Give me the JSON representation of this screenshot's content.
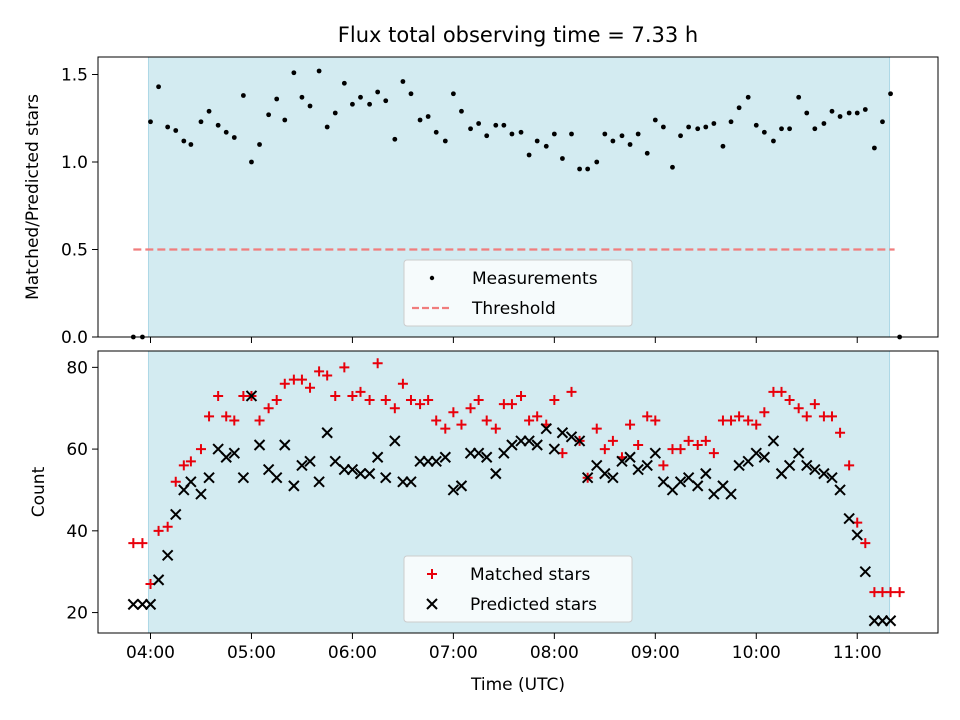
{
  "title": "Flux total observing time = 7.33 h",
  "colors": {
    "observing_span": "#d3ebf1",
    "threshold": "#f07d7d",
    "measurements": "#000000",
    "matched": "#e8000b",
    "predicted": "#000000"
  },
  "chart_data": [
    {
      "type": "scatter",
      "ylabel": "Matched/Predicted stars",
      "ylim": [
        0,
        1.6
      ],
      "yticks": [
        0.0,
        0.5,
        1.0,
        1.5
      ],
      "ytick_labels": [
        "0.0",
        "0.5",
        "1.0",
        "1.5"
      ],
      "xlim_hours": [
        3.48,
        11.8
      ],
      "observing_span_hours": [
        3.98,
        11.32
      ],
      "legend": {
        "placement": "lower-center",
        "entries": [
          "Measurements",
          "Threshold"
        ]
      },
      "threshold": {
        "name": "Threshold",
        "value": 0.5,
        "x_range_hours": [
          3.83,
          11.37
        ]
      },
      "series": [
        {
          "name": "Measurements",
          "x_hours": [
            3.83,
            3.92,
            4.0,
            4.08,
            4.17,
            4.25,
            4.33,
            4.4,
            4.5,
            4.58,
            4.67,
            4.75,
            4.83,
            4.92,
            5.0,
            5.08,
            5.17,
            5.25,
            5.33,
            5.42,
            5.5,
            5.58,
            5.67,
            5.75,
            5.83,
            5.92,
            6.0,
            6.08,
            6.17,
            6.25,
            6.33,
            6.42,
            6.5,
            6.58,
            6.67,
            6.75,
            6.83,
            6.92,
            7.0,
            7.08,
            7.17,
            7.25,
            7.33,
            7.42,
            7.5,
            7.58,
            7.67,
            7.75,
            7.83,
            7.92,
            8.0,
            8.08,
            8.17,
            8.25,
            8.33,
            8.42,
            8.5,
            8.58,
            8.67,
            8.75,
            8.83,
            8.92,
            9.0,
            9.08,
            9.17,
            9.25,
            9.33,
            9.42,
            9.5,
            9.58,
            9.67,
            9.75,
            9.83,
            9.92,
            10.0,
            10.08,
            10.17,
            10.25,
            10.33,
            10.42,
            10.5,
            10.58,
            10.67,
            10.75,
            10.83,
            10.92,
            11.0,
            11.08,
            11.17,
            11.25,
            11.33,
            11.42
          ],
          "values": [
            0.0,
            0.0,
            1.23,
            1.43,
            1.2,
            1.18,
            1.12,
            1.1,
            1.23,
            1.29,
            1.21,
            1.17,
            1.14,
            1.38,
            1.0,
            1.1,
            1.27,
            1.36,
            1.24,
            1.51,
            1.37,
            1.32,
            1.52,
            1.2,
            1.28,
            1.45,
            1.33,
            1.37,
            1.33,
            1.4,
            1.35,
            1.13,
            1.46,
            1.39,
            1.24,
            1.26,
            1.17,
            1.12,
            1.39,
            1.29,
            1.19,
            1.22,
            1.15,
            1.21,
            1.21,
            1.16,
            1.17,
            1.04,
            1.12,
            1.09,
            1.16,
            1.02,
            1.16,
            0.96,
            0.96,
            1.0,
            1.16,
            1.12,
            1.15,
            1.1,
            1.16,
            1.05,
            1.24,
            1.2,
            0.97,
            1.15,
            1.2,
            1.19,
            1.2,
            1.22,
            1.09,
            1.23,
            1.31,
            1.37,
            1.21,
            1.17,
            1.12,
            1.19,
            1.19,
            1.37,
            1.28,
            1.19,
            1.22,
            1.29,
            1.26,
            1.28,
            1.28,
            1.3,
            1.08,
            1.23,
            1.39,
            0.0
          ]
        }
      ]
    },
    {
      "type": "scatter",
      "xlabel": "Time (UTC)",
      "ylabel": "Count",
      "ylim": [
        15,
        84
      ],
      "yticks": [
        20,
        40,
        60,
        80
      ],
      "ytick_labels": [
        "20",
        "40",
        "60",
        "80"
      ],
      "xlim_hours": [
        3.48,
        11.8
      ],
      "xticks_hours": [
        4,
        5,
        6,
        7,
        8,
        9,
        10,
        11
      ],
      "xtick_labels": [
        "04:00",
        "05:00",
        "06:00",
        "07:00",
        "08:00",
        "09:00",
        "10:00",
        "11:00"
      ],
      "observing_span_hours": [
        3.98,
        11.32
      ],
      "legend": {
        "placement": "lower-center",
        "entries": [
          "Matched stars",
          "Predicted stars"
        ]
      },
      "series": [
        {
          "name": "Matched stars",
          "marker": "plus",
          "x_hours": [
            3.83,
            3.92,
            4.0,
            4.08,
            4.17,
            4.25,
            4.33,
            4.4,
            4.5,
            4.58,
            4.67,
            4.75,
            4.83,
            4.92,
            5.0,
            5.08,
            5.17,
            5.25,
            5.33,
            5.42,
            5.5,
            5.58,
            5.67,
            5.75,
            5.83,
            5.92,
            6.0,
            6.08,
            6.17,
            6.25,
            6.33,
            6.42,
            6.5,
            6.58,
            6.67,
            6.75,
            6.83,
            6.92,
            7.0,
            7.08,
            7.17,
            7.25,
            7.33,
            7.42,
            7.5,
            7.58,
            7.67,
            7.75,
            7.83,
            7.92,
            8.0,
            8.08,
            8.17,
            8.25,
            8.33,
            8.42,
            8.5,
            8.58,
            8.67,
            8.75,
            8.83,
            8.92,
            9.0,
            9.08,
            9.17,
            9.25,
            9.33,
            9.42,
            9.5,
            9.58,
            9.67,
            9.75,
            9.83,
            9.92,
            10.0,
            10.08,
            10.17,
            10.25,
            10.33,
            10.42,
            10.5,
            10.58,
            10.67,
            10.75,
            10.83,
            10.92,
            11.0,
            11.08,
            11.17,
            11.25,
            11.33,
            11.42
          ],
          "values": [
            37,
            37,
            27,
            40,
            41,
            52,
            56,
            57,
            60,
            68,
            73,
            68,
            67,
            73,
            73,
            67,
            70,
            72,
            76,
            77,
            77,
            75,
            79,
            78,
            73,
            80,
            73,
            74,
            72,
            81,
            72,
            70,
            76,
            72,
            71,
            72,
            67,
            65,
            69,
            66,
            70,
            72,
            67,
            65,
            71,
            71,
            73,
            67,
            68,
            66,
            72,
            59,
            74,
            62,
            53,
            65,
            60,
            62,
            58,
            66,
            61,
            68,
            67,
            56,
            60,
            60,
            62,
            61,
            62,
            59,
            67,
            67,
            68,
            67,
            66,
            69,
            74,
            74,
            72,
            70,
            68,
            71,
            68,
            68,
            64,
            56,
            42,
            37,
            25,
            25,
            25,
            25
          ]
        },
        {
          "name": "Predicted stars",
          "marker": "x",
          "x_hours": [
            3.83,
            3.92,
            4.0,
            4.08,
            4.17,
            4.25,
            4.33,
            4.4,
            4.5,
            4.58,
            4.67,
            4.75,
            4.83,
            4.92,
            5.0,
            5.08,
            5.17,
            5.25,
            5.33,
            5.42,
            5.5,
            5.58,
            5.67,
            5.75,
            5.83,
            5.92,
            6.0,
            6.08,
            6.17,
            6.25,
            6.33,
            6.42,
            6.5,
            6.58,
            6.67,
            6.75,
            6.83,
            6.92,
            7.0,
            7.08,
            7.17,
            7.25,
            7.33,
            7.42,
            7.5,
            7.58,
            7.67,
            7.75,
            7.83,
            7.92,
            8.0,
            8.08,
            8.17,
            8.25,
            8.33,
            8.42,
            8.5,
            8.58,
            8.67,
            8.75,
            8.83,
            8.92,
            9.0,
            9.08,
            9.17,
            9.25,
            9.33,
            9.42,
            9.5,
            9.58,
            9.67,
            9.75,
            9.83,
            9.92,
            10.0,
            10.08,
            10.17,
            10.25,
            10.33,
            10.42,
            10.5,
            10.58,
            10.67,
            10.75,
            10.83,
            10.92,
            11.0,
            11.08,
            11.17,
            11.25,
            11.33
          ],
          "values": [
            22,
            22,
            22,
            28,
            34,
            44,
            50,
            52,
            49,
            53,
            60,
            58,
            59,
            53,
            73,
            61,
            55,
            53,
            61,
            51,
            56,
            57,
            52,
            64,
            57,
            55,
            55,
            54,
            54,
            58,
            53,
            62,
            52,
            52,
            57,
            57,
            57,
            58,
            50,
            51,
            59,
            59,
            58,
            54,
            59,
            61,
            62,
            62,
            61,
            65,
            60,
            64,
            63,
            62,
            53,
            56,
            54,
            53,
            57,
            58,
            55,
            56,
            59,
            52,
            50,
            52,
            53,
            51,
            54,
            49,
            51,
            49,
            56,
            57,
            59,
            58,
            62,
            54,
            56,
            59,
            56,
            55,
            54,
            53,
            50,
            43,
            39,
            30,
            18,
            18,
            18
          ]
        }
      ]
    }
  ]
}
